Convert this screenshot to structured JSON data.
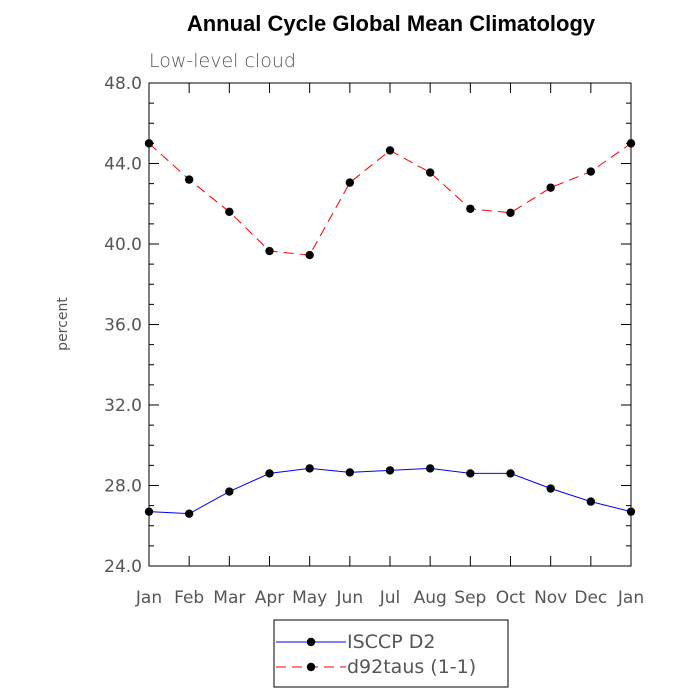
{
  "chart_data": {
    "type": "line",
    "title": "Annual Cycle Global Mean Climatology",
    "subtitle": "Low-level cloud",
    "ylabel": "percent",
    "xlabel": "",
    "ylim": [
      24.0,
      48.0
    ],
    "y_major_ticks": [
      24.0,
      28.0,
      32.0,
      36.0,
      40.0,
      44.0,
      48.0
    ],
    "y_tick_labels": [
      "24.0",
      "28.0",
      "32.0",
      "36.0",
      "40.0",
      "44.0",
      "48.0"
    ],
    "y_minor_step": 1.0,
    "categories": [
      "Jan",
      "Feb",
      "Mar",
      "Apr",
      "May",
      "Jun",
      "Jul",
      "Aug",
      "Sep",
      "Oct",
      "Nov",
      "Dec",
      "Jan"
    ],
    "series": [
      {
        "name": "ISCCP D2",
        "color": "#0000ff",
        "dash": "solid",
        "marker": "filled-circle",
        "values": [
          26.7,
          26.6,
          27.7,
          28.6,
          28.85,
          28.65,
          28.75,
          28.85,
          28.6,
          28.6,
          27.85,
          27.2,
          26.7
        ]
      },
      {
        "name": "d92taus (1-1)",
        "color": "#ff0000",
        "dash": "dashed",
        "marker": "filled-circle",
        "values": [
          45.0,
          43.2,
          41.6,
          39.65,
          39.45,
          43.05,
          44.65,
          43.55,
          41.75,
          41.55,
          42.8,
          43.6,
          45.0
        ]
      }
    ],
    "legend_position": "bottom-center",
    "grid": false
  }
}
